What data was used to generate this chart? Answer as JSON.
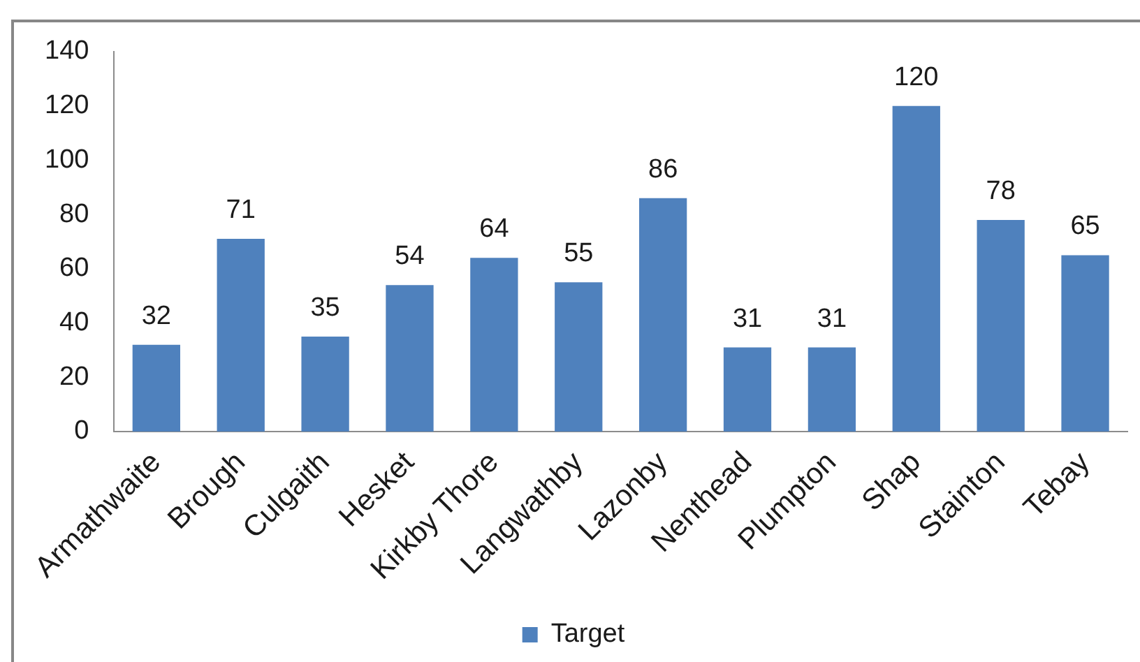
{
  "chart_data": {
    "type": "bar",
    "categories": [
      "Armathwaite",
      "Brough",
      "Culgaith",
      "Hesket",
      "Kirkby Thore",
      "Langwathby",
      "Lazonby",
      "Nenthead",
      "Plumpton",
      "Shap",
      "Stainton",
      "Tebay"
    ],
    "series": [
      {
        "name": "Target",
        "color": "#4f81bd",
        "values": [
          32,
          71,
          35,
          54,
          64,
          55,
          86,
          31,
          31,
          120,
          78,
          65
        ]
      }
    ],
    "ylim": [
      0,
      140
    ],
    "yticks": [
      0,
      20,
      40,
      60,
      80,
      100,
      120,
      140
    ],
    "grid": false,
    "legend": "bottom",
    "data_labels": true
  }
}
